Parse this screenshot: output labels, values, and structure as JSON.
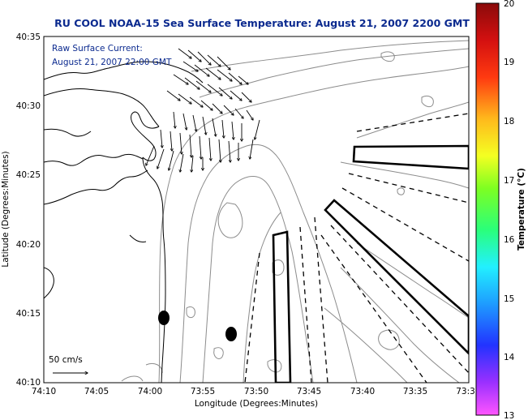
{
  "title": "RU COOL  NOAA-15  Sea Surface Temperature:  August 21, 2007 2200 GMT",
  "annotation": {
    "line1": "Raw Surface Current:",
    "line2": "August 21, 2007 22:00 GMT"
  },
  "scale_label": "50 cm/s",
  "axes": {
    "xlabel": "Longitude (Degrees:Minutes)",
    "ylabel": "Latitude (Degrees:Minutes)",
    "x_ticks": [
      "74:10",
      "74:05",
      "74:00",
      "73:55",
      "73:50",
      "73:45",
      "73:40",
      "73:35",
      "73:3"
    ],
    "y_ticks": [
      "40:35",
      "40:30",
      "40:25",
      "40:20",
      "40:15",
      "40:10"
    ]
  },
  "colorbar": {
    "label": "Temperature (°C)",
    "min": 13,
    "max": 20,
    "ticks": [
      "20",
      "19",
      "18",
      "17",
      "16",
      "15",
      "14",
      "13"
    ],
    "colors": [
      "#ff55ff",
      "#9a30ff",
      "#2233ff",
      "#1e9cff",
      "#22f0ff",
      "#2aff7a",
      "#7dff22",
      "#f4ff22",
      "#ffb81c",
      "#ff3a10",
      "#d41010",
      "#8a0a0a"
    ]
  },
  "map_features": {
    "coastline": "New Jersey / Raritan Bay shoreline",
    "bathymetry": "depth contours",
    "markers": [
      "dredge disposal site A",
      "dredge disposal site B"
    ]
  }
}
